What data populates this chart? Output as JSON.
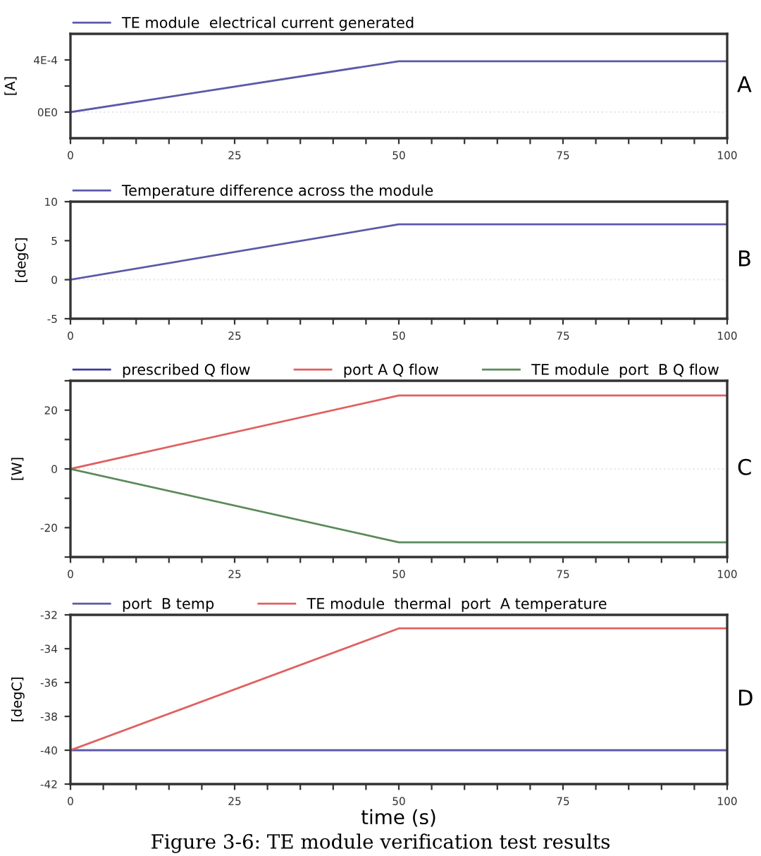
{
  "chart_data": [
    {
      "type": "line",
      "x": [
        0,
        50,
        100
      ],
      "ylabel": "[A]",
      "legend": "top left",
      "annotations": [
        "A"
      ],
      "series": [
        {
          "name": "TE module  electrical current generated",
          "color": "#5a5aa8",
          "values": [
            0,
            0.00039,
            0.00039
          ]
        }
      ],
      "xlim": [
        0,
        100
      ],
      "xticks": [
        0,
        {
          "value": 5,
          "label": null
        },
        {
          "value": 10,
          "label": null
        },
        {
          "value": 15,
          "label": null
        },
        {
          "value": 20,
          "label": null
        },
        25,
        {
          "value": 30,
          "label": null
        },
        {
          "value": 35,
          "label": null
        },
        {
          "value": 40,
          "label": null
        },
        {
          "value": 45,
          "label": null
        },
        50,
        {
          "value": 55,
          "label": null
        },
        {
          "value": 60,
          "label": null
        },
        {
          "value": 65,
          "label": null
        },
        {
          "value": 70,
          "label": null
        },
        75,
        {
          "value": 80,
          "label": null
        },
        {
          "value": 85,
          "label": null
        },
        {
          "value": 90,
          "label": null
        },
        {
          "value": 95,
          "label": null
        },
        100
      ],
      "ylim": [
        -0.0002,
        0.0006
      ],
      "yticks": [
        {
          "value": 0,
          "label": "0E0"
        },
        {
          "value": 0.0002,
          "label": null
        },
        {
          "value": 0.0004,
          "label": "4E-4"
        }
      ],
      "ref_lines": [
        {
          "axis": "y",
          "value": 0,
          "color": "#e6e6e6",
          "line_style": "dotted"
        }
      ]
    },
    {
      "type": "line",
      "x": [
        0,
        50,
        100
      ],
      "ylabel": "[degC]",
      "legend": "top left",
      "annotations": [
        "B"
      ],
      "series": [
        {
          "name": "Temperature difference across the module",
          "color": "#5a5aa8",
          "values": [
            0,
            7.1,
            7.1
          ]
        }
      ],
      "xlim": [
        0,
        100
      ],
      "xticks": [
        0,
        {
          "value": 5,
          "label": null
        },
        {
          "value": 10,
          "label": null
        },
        {
          "value": 15,
          "label": null
        },
        {
          "value": 20,
          "label": null
        },
        25,
        {
          "value": 30,
          "label": null
        },
        {
          "value": 35,
          "label": null
        },
        {
          "value": 40,
          "label": null
        },
        {
          "value": 45,
          "label": null
        },
        50,
        {
          "value": 55,
          "label": null
        },
        {
          "value": 60,
          "label": null
        },
        {
          "value": 65,
          "label": null
        },
        {
          "value": 70,
          "label": null
        },
        75,
        {
          "value": 80,
          "label": null
        },
        {
          "value": 85,
          "label": null
        },
        {
          "value": 90,
          "label": null
        },
        {
          "value": 95,
          "label": null
        },
        100
      ],
      "ylim": [
        -5,
        10
      ],
      "yticks": [
        -5,
        0,
        5,
        10
      ],
      "ref_lines": [
        {
          "axis": "y",
          "value": 0,
          "color": "#e6e6e6",
          "line_style": "dotted"
        }
      ]
    },
    {
      "type": "line",
      "x": [
        0,
        50,
        100
      ],
      "ylabel": "[W]",
      "legend": "top left",
      "annotations": [
        "C"
      ],
      "series": [
        {
          "name": "prescribed Q flow",
          "color": "#3c3ca0",
          "values": [
            null,
            null,
            null
          ]
        },
        {
          "name": "port A Q flow",
          "color": "#e06060",
          "values": [
            0,
            25,
            25
          ]
        },
        {
          "name": "TE module  port  B Q flow",
          "color": "#5a8a5a",
          "values": [
            0,
            -25,
            -25
          ]
        }
      ],
      "xlim": [
        0,
        100
      ],
      "xticks": [
        0,
        {
          "value": 5,
          "label": null
        },
        {
          "value": 10,
          "label": null
        },
        {
          "value": 15,
          "label": null
        },
        {
          "value": 20,
          "label": null
        },
        25,
        {
          "value": 30,
          "label": null
        },
        {
          "value": 35,
          "label": null
        },
        {
          "value": 40,
          "label": null
        },
        {
          "value": 45,
          "label": null
        },
        50,
        {
          "value": 55,
          "label": null
        },
        {
          "value": 60,
          "label": null
        },
        {
          "value": 65,
          "label": null
        },
        {
          "value": 70,
          "label": null
        },
        75,
        {
          "value": 80,
          "label": null
        },
        {
          "value": 85,
          "label": null
        },
        {
          "value": 90,
          "label": null
        },
        {
          "value": 95,
          "label": null
        },
        100
      ],
      "ylim": [
        -30,
        30
      ],
      "yticks": [
        {
          "value": -30,
          "label": null
        },
        -20,
        {
          "value": -10,
          "label": null
        },
        0,
        {
          "value": 10,
          "label": null
        },
        20,
        {
          "value": 30,
          "label": null
        }
      ],
      "ref_lines": [
        {
          "axis": "y",
          "value": 0,
          "color": "#e6e6e6",
          "line_style": "dotted"
        }
      ]
    },
    {
      "type": "line",
      "x": [
        0,
        50,
        100
      ],
      "xlabel": "time (s)",
      "ylabel": "[degC]",
      "legend": "top left",
      "annotations": [
        "D",
        "Figure 3-6: TE module verification test results"
      ],
      "series": [
        {
          "name": "port  B temp",
          "color": "#5a5aa8",
          "values": [
            -40,
            -40,
            -40
          ]
        },
        {
          "name": "TE module  thermal  port  A temperature",
          "color": "#e06060",
          "values": [
            -40,
            -32.8,
            -32.8
          ]
        }
      ],
      "xlim": [
        0,
        100
      ],
      "xticks": [
        0,
        {
          "value": 5,
          "label": null
        },
        {
          "value": 10,
          "label": null
        },
        {
          "value": 15,
          "label": null
        },
        {
          "value": 20,
          "label": null
        },
        25,
        {
          "value": 30,
          "label": null
        },
        {
          "value": 35,
          "label": null
        },
        {
          "value": 40,
          "label": null
        },
        {
          "value": 45,
          "label": null
        },
        50,
        {
          "value": 55,
          "label": null
        },
        {
          "value": 60,
          "label": null
        },
        {
          "value": 65,
          "label": null
        },
        {
          "value": 70,
          "label": null
        },
        75,
        {
          "value": 80,
          "label": null
        },
        {
          "value": 85,
          "label": null
        },
        {
          "value": 90,
          "label": null
        },
        {
          "value": 95,
          "label": null
        },
        100
      ],
      "ylim": [
        -42,
        -32
      ],
      "yticks": [
        -42,
        -40,
        -38,
        -36,
        -34,
        -32
      ]
    }
  ]
}
